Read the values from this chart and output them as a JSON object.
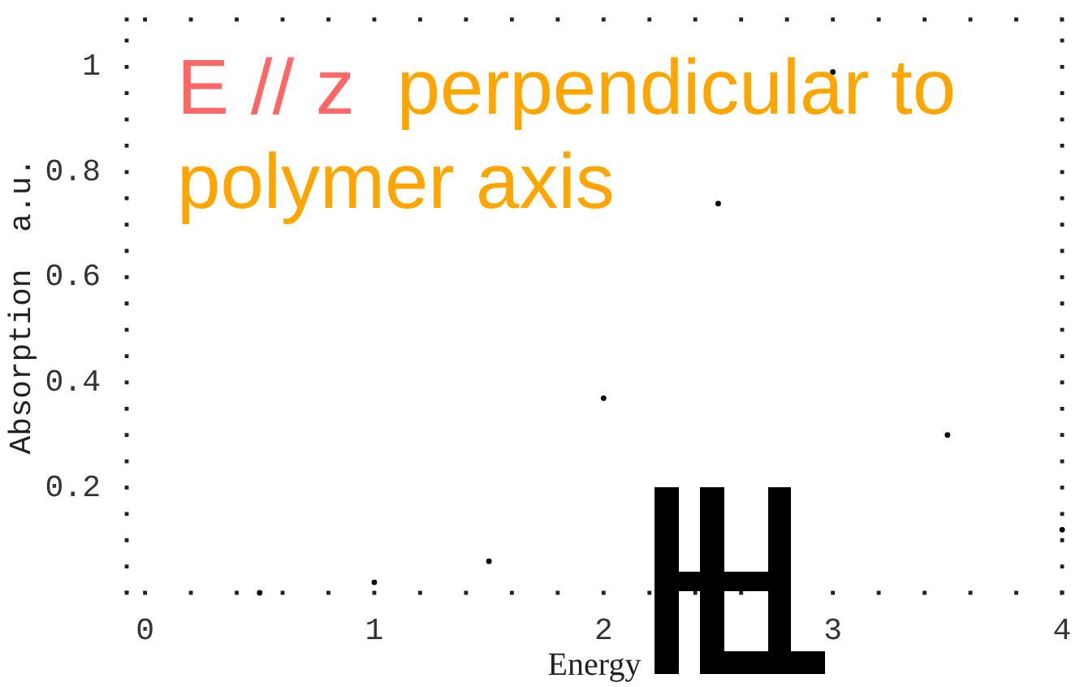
{
  "chart_data": {
    "type": "scatter",
    "xlabel": "Energy",
    "ylabel": "Absorption  a.u.",
    "annotations": [
      "E // z",
      "perpendicular to",
      "polymer axis"
    ],
    "x": [
      0.5,
      1,
      1.5,
      2,
      2.5,
      3,
      3.5,
      4
    ],
    "values": [
      0,
      0.02,
      0.06,
      0.37,
      0.74,
      0.99,
      0.3,
      0.12
    ],
    "color": "#000000",
    "marker": "circle",
    "xlim": [
      -0.08,
      4
    ],
    "ylim": [
      0,
      1.09
    ],
    "xticks": [
      0,
      1,
      2,
      3,
      4
    ],
    "yticks": [
      0.2,
      0.4,
      0.6,
      0.8,
      1
    ],
    "grid": false
  }
}
